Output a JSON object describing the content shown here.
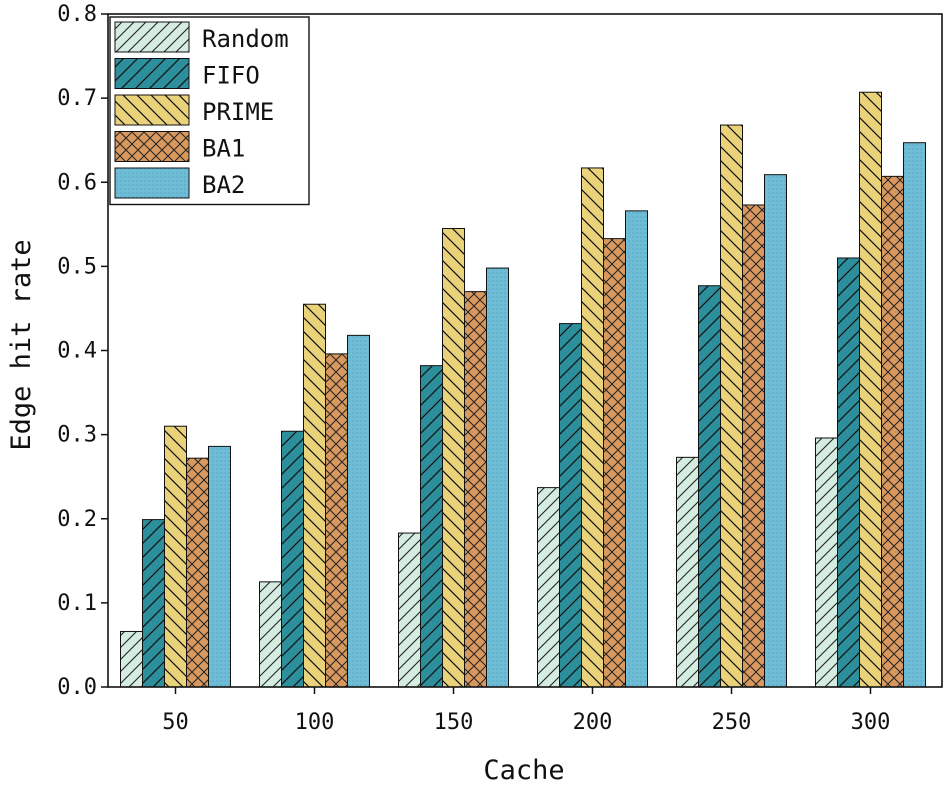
{
  "chart_data": {
    "type": "bar",
    "title": "",
    "xlabel": "Cache",
    "ylabel": "Edge hit rate",
    "categories": [
      "50",
      "100",
      "150",
      "200",
      "250",
      "300"
    ],
    "ylim": [
      0.0,
      0.8
    ],
    "yticks": [
      "0.0",
      "0.1",
      "0.2",
      "0.3",
      "0.4",
      "0.5",
      "0.6",
      "0.7",
      "0.8"
    ],
    "legend_position": "top-left",
    "grid": false,
    "series": [
      {
        "name": "Random",
        "values": [
          0.066,
          0.125,
          0.183,
          0.237,
          0.273,
          0.296
        ],
        "color": "#d4ede0",
        "pattern": "diag-up-fine"
      },
      {
        "name": "FIFO",
        "values": [
          0.199,
          0.304,
          0.382,
          0.432,
          0.477,
          0.51
        ],
        "color": "#2e8f9c",
        "pattern": "diag-up"
      },
      {
        "name": "PRIME",
        "values": [
          0.31,
          0.455,
          0.545,
          0.617,
          0.668,
          0.707
        ],
        "color": "#ead27a",
        "pattern": "diag-down"
      },
      {
        "name": "BA1",
        "values": [
          0.272,
          0.396,
          0.47,
          0.533,
          0.573,
          0.607
        ],
        "color": "#d9995e",
        "pattern": "crosshatch"
      },
      {
        "name": "BA2",
        "values": [
          0.286,
          0.418,
          0.498,
          0.566,
          0.609,
          0.647
        ],
        "color": "#6ebcd6",
        "pattern": "dots"
      }
    ]
  }
}
